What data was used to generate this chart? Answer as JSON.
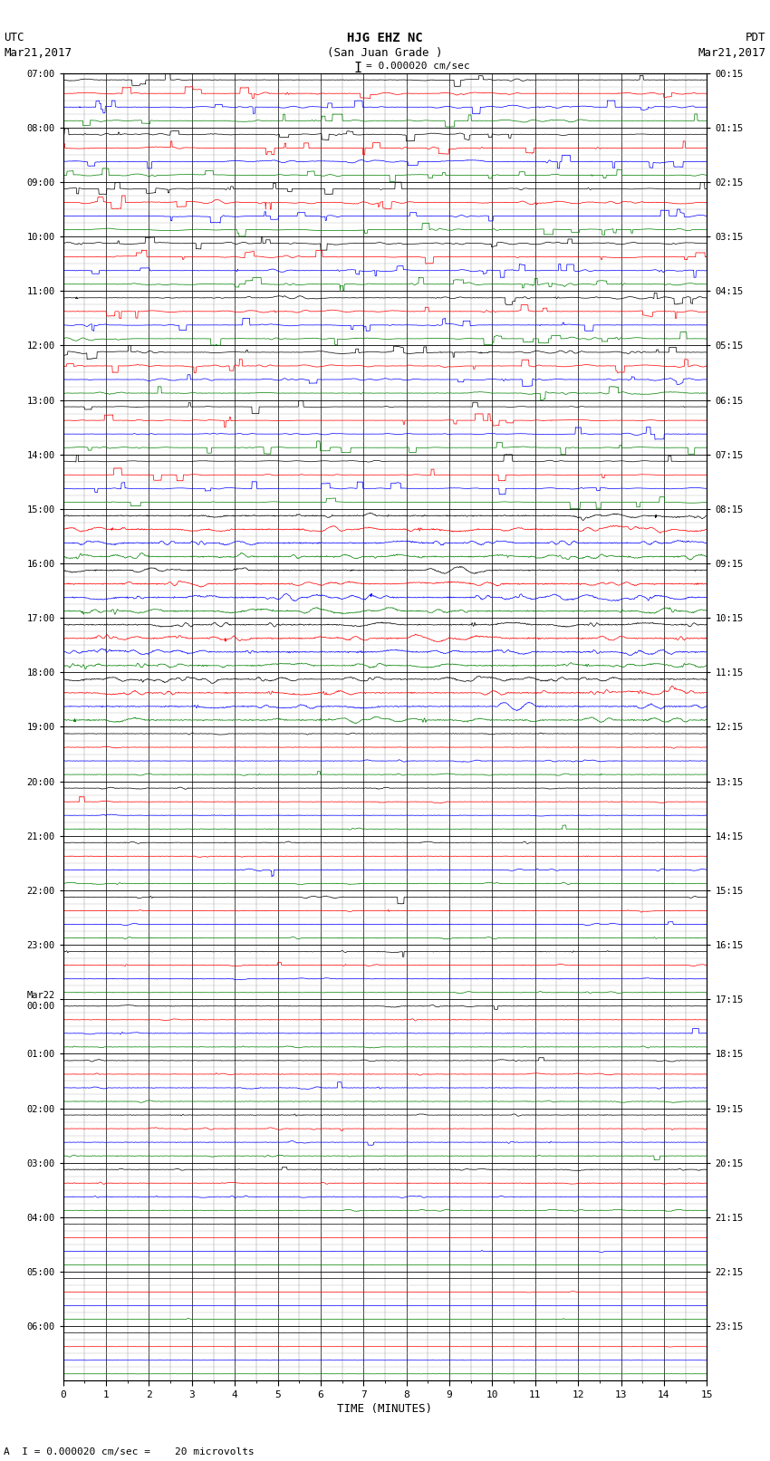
{
  "title_line1": "HJG EHZ NC",
  "title_line2": "(San Juan Grade )",
  "scale_text": "= 0.000020 cm/sec",
  "scale_bar": "I",
  "left_label_1": "UTC",
  "left_label_2": "Mar21,2017",
  "right_label_1": "PDT",
  "right_label_2": "Mar21,2017",
  "xlabel": "TIME (MINUTES)",
  "footer_text": "A  I = 0.000020 cm/sec =    20 microvolts",
  "utc_times": [
    "07:00",
    "08:00",
    "09:00",
    "10:00",
    "11:00",
    "12:00",
    "13:00",
    "14:00",
    "15:00",
    "16:00",
    "17:00",
    "18:00",
    "19:00",
    "20:00",
    "21:00",
    "22:00",
    "23:00",
    "Mar22\n00:00",
    "01:00",
    "02:00",
    "03:00",
    "04:00",
    "05:00",
    "06:00"
  ],
  "pdt_times": [
    "00:15",
    "01:15",
    "02:15",
    "03:15",
    "04:15",
    "05:15",
    "06:15",
    "07:15",
    "08:15",
    "09:15",
    "10:15",
    "11:15",
    "12:15",
    "13:15",
    "14:15",
    "15:15",
    "16:15",
    "17:15",
    "18:15",
    "19:15",
    "20:15",
    "21:15",
    "22:15",
    "23:15"
  ],
  "n_hours": 24,
  "n_channels": 4,
  "n_minutes": 15,
  "bg_color": "#ffffff",
  "colors": [
    "black",
    "red",
    "blue",
    "green"
  ],
  "active_hours": [
    0,
    1,
    2,
    3,
    4,
    5,
    6,
    7,
    8,
    9,
    10,
    11
  ],
  "moderate_hours": [
    12,
    13,
    14,
    15,
    16,
    17,
    18,
    19,
    20
  ],
  "quiet_hours": [
    21,
    22,
    23
  ]
}
